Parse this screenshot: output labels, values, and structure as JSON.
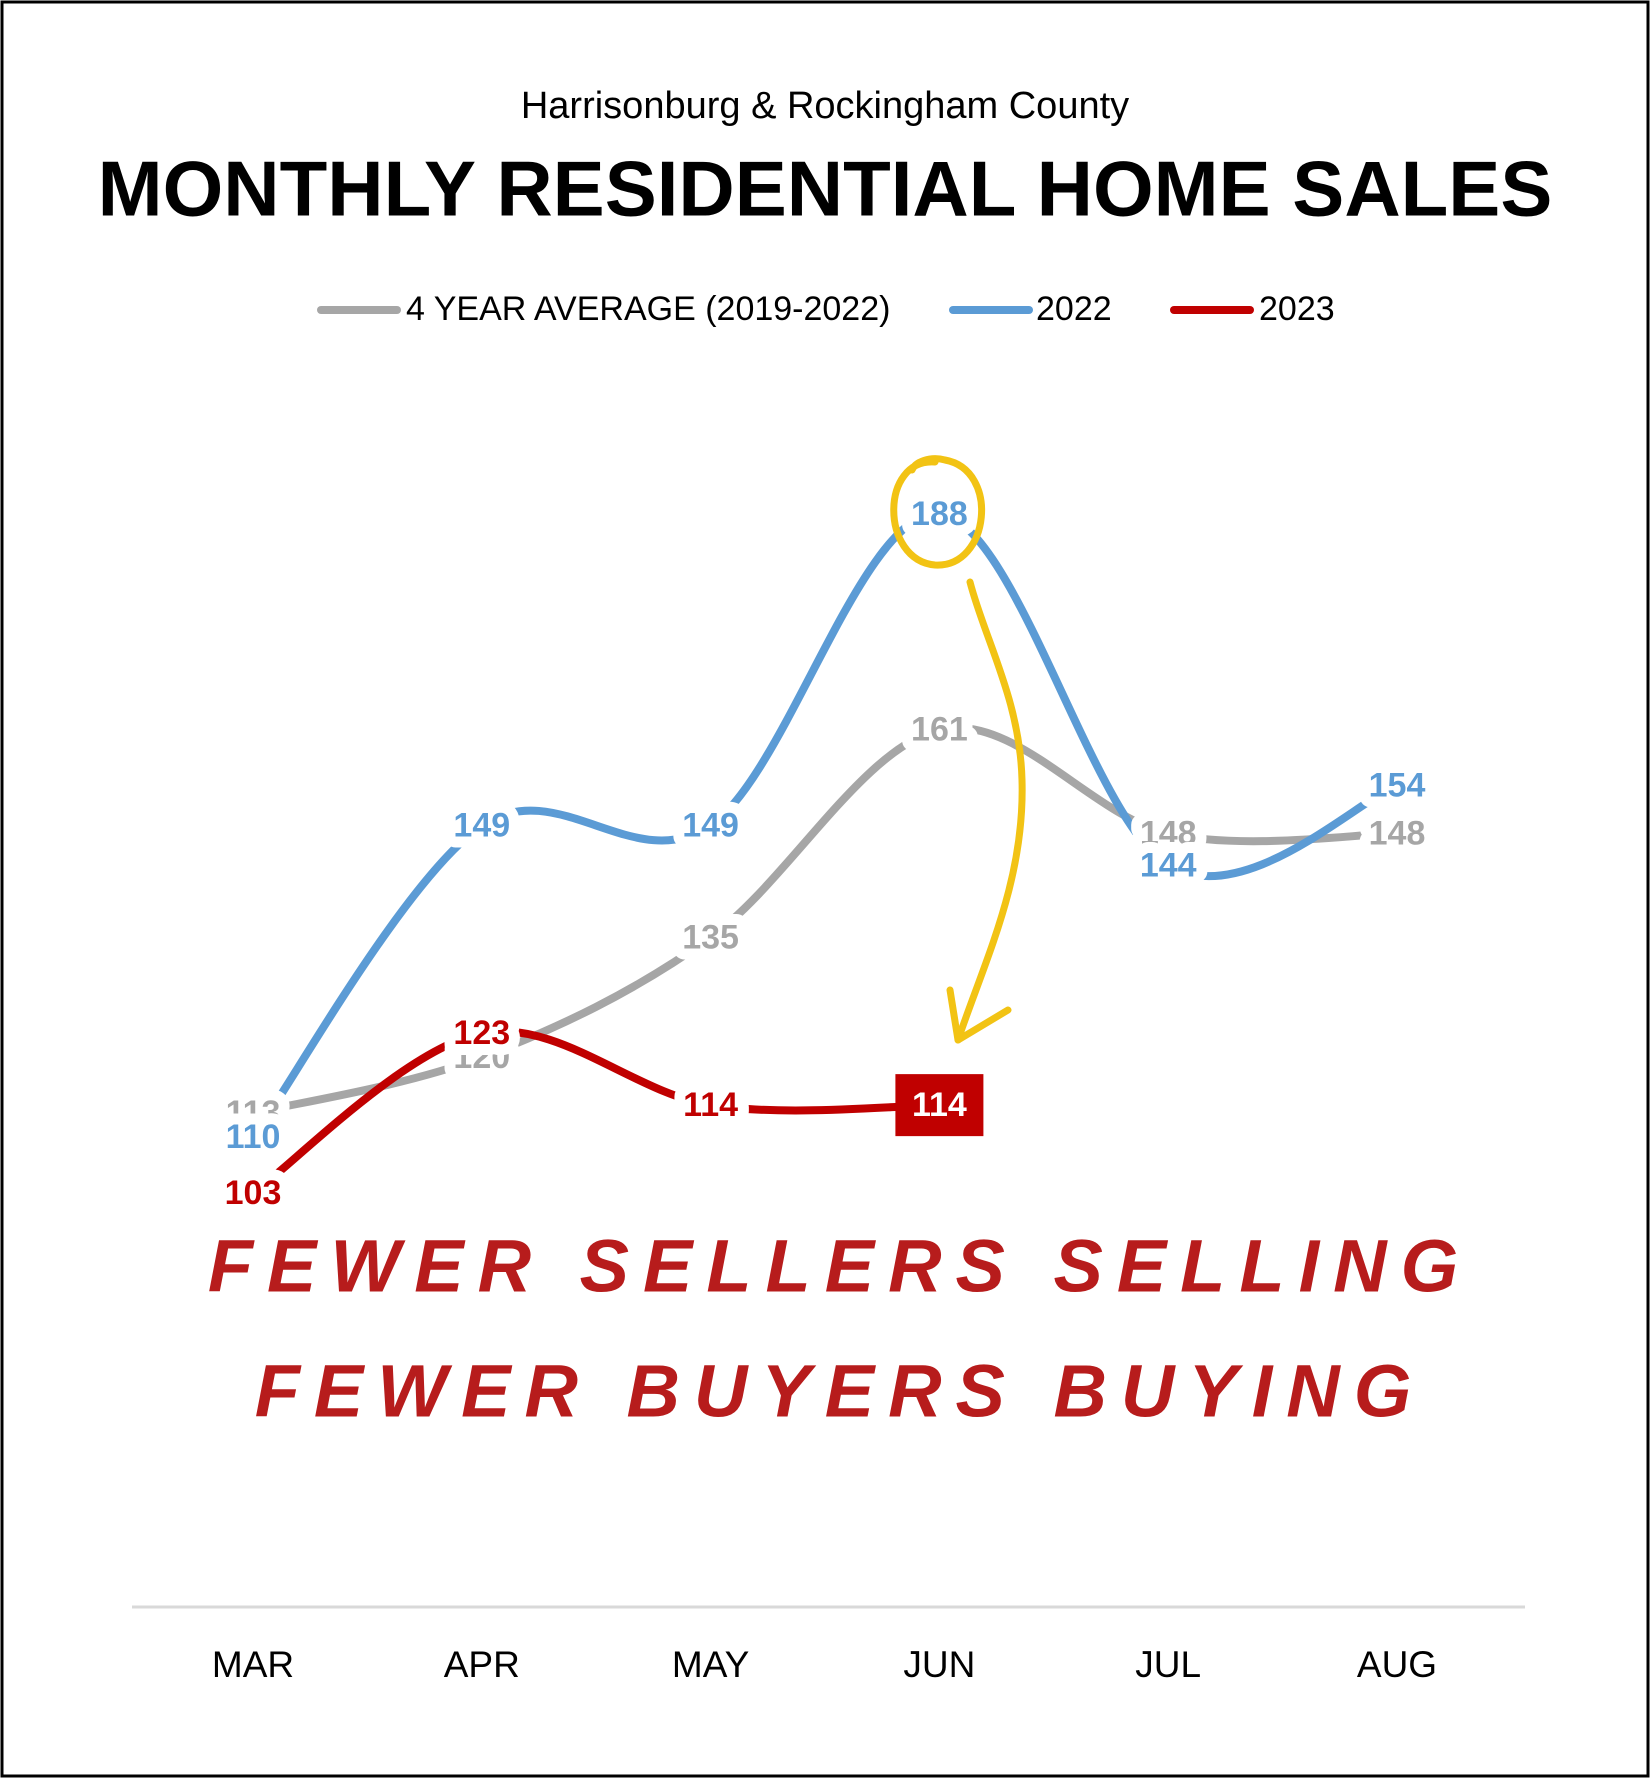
{
  "chart_data": {
    "type": "line",
    "subtitle": "Harrisonburg & Rockingham County",
    "title": "MONTHLY RESIDENTIAL HOME SALES",
    "categories": [
      "MAR",
      "APR",
      "MAY",
      "JUN",
      "JUL",
      "AUG"
    ],
    "series": [
      {
        "name": "4 YEAR AVERAGE (2019-2022)",
        "color": "#a6a6a6",
        "values": [
          113,
          120,
          135,
          161,
          148,
          148
        ]
      },
      {
        "name": "2022",
        "color": "#5b9bd5",
        "values": [
          110,
          149,
          149,
          188,
          144,
          154
        ]
      },
      {
        "name": "2023",
        "color": "#c00000",
        "values": [
          103,
          123,
          114,
          114,
          null,
          null
        ]
      }
    ],
    "annotations": [
      "FEWER SELLERS SELLING",
      "FEWER BUYERS BUYING"
    ],
    "legend": "top"
  }
}
